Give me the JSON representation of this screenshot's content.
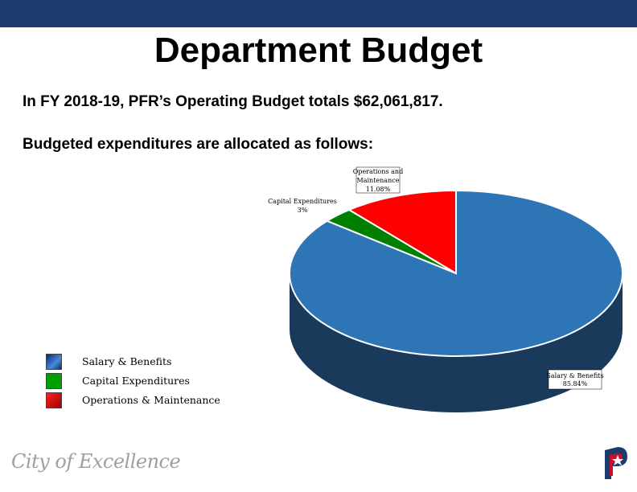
{
  "header": {
    "bar_color": "#1f3a6e"
  },
  "page": {
    "title": "Department Budget",
    "line1": "In FY 2018-19, PFR’s Operating Budget totals $62,061,817.",
    "line2": "Budgeted expenditures are allocated as follows:"
  },
  "chart_data": {
    "type": "pie",
    "style": "3d",
    "slices": [
      {
        "name": "Salary & Benefits",
        "value": 85.84,
        "label_line1": "Salary & Benefits",
        "label_line2": "85.84%",
        "color": "#2e75b6"
      },
      {
        "name": "Capital Expenditures",
        "value": 3,
        "label_line1": "Capital Expenditures",
        "label_line2": "3%",
        "color": "#008000"
      },
      {
        "name": "Operations & Maintenance",
        "value": 11.08,
        "label_line1": "Operations and",
        "label_line2": "Maintenance",
        "label_line3": "11.08%",
        "color": "#ff0000"
      }
    ],
    "legend": [
      {
        "label": "Salary & Benefits",
        "color": "#1f5fae"
      },
      {
        "label": "Capital Expenditures",
        "color": "#00a000"
      },
      {
        "label": "Operations & Maintenance",
        "color": "#c00000"
      }
    ],
    "legend_position": "bottom-left"
  },
  "footer": {
    "logo_text": "City of Excellence"
  }
}
